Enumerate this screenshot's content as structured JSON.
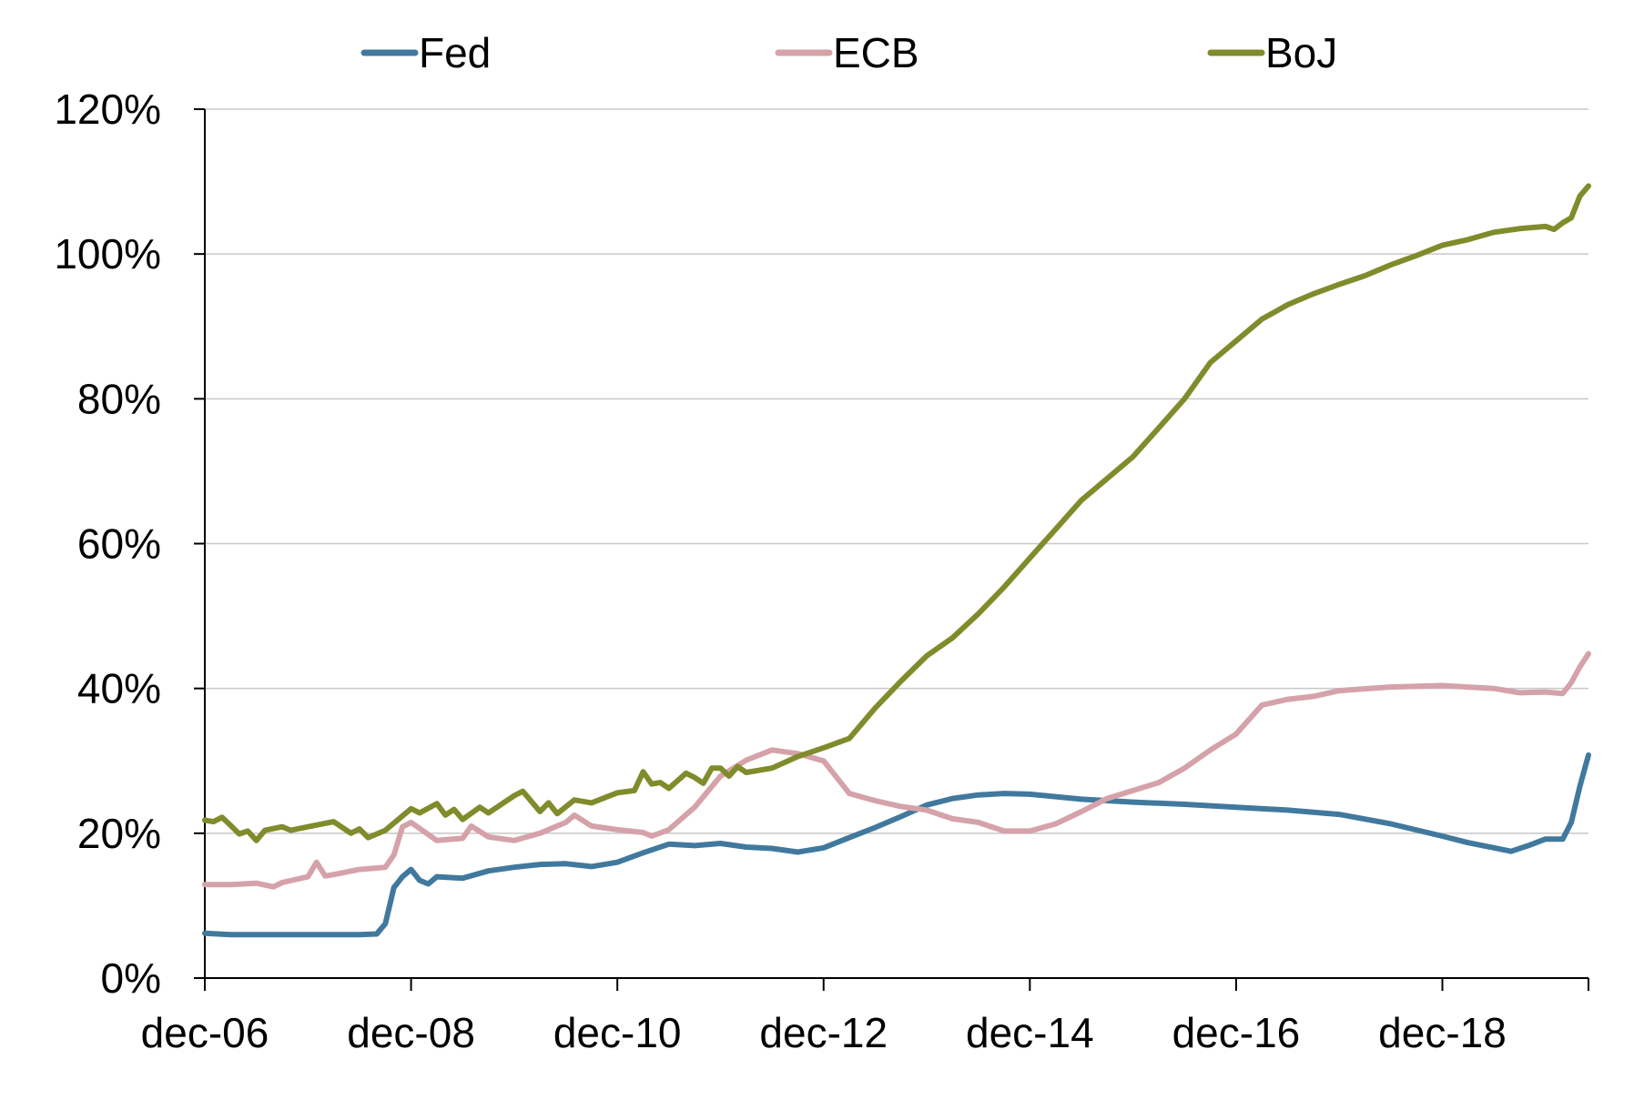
{
  "chart_data": {
    "type": "line",
    "title": "",
    "xlabel": "",
    "ylabel": "",
    "x_start": "2006-12",
    "x_end": "2020-05",
    "x_ticks": [
      "dec-06",
      "dec-08",
      "dec-10",
      "dec-12",
      "dec-14",
      "dec-16",
      "dec-18"
    ],
    "x_tick_dates": [
      "2006-12",
      "2008-12",
      "2010-12",
      "2012-12",
      "2014-12",
      "2016-12",
      "2018-12"
    ],
    "y_ticks": [
      "0%",
      "20%",
      "40%",
      "60%",
      "80%",
      "100%",
      "120%"
    ],
    "y_tick_values": [
      0,
      20,
      40,
      60,
      80,
      100,
      120
    ],
    "ylim": [
      0,
      120
    ],
    "grid": "horizontal",
    "legend_position": "top",
    "series": [
      {
        "name": "Fed",
        "color": "#41799E",
        "points": [
          [
            "2006-12",
            6.2
          ],
          [
            "2007-03",
            6.0
          ],
          [
            "2007-06",
            6.0
          ],
          [
            "2007-09",
            6.0
          ],
          [
            "2007-12",
            6.0
          ],
          [
            "2008-03",
            6.0
          ],
          [
            "2008-06",
            6.0
          ],
          [
            "2008-08",
            6.1
          ],
          [
            "2008-09",
            7.5
          ],
          [
            "2008-10",
            12.5
          ],
          [
            "2008-11",
            14.0
          ],
          [
            "2008-12",
            15.0
          ],
          [
            "2009-01",
            13.5
          ],
          [
            "2009-02",
            13.0
          ],
          [
            "2009-03",
            14.0
          ],
          [
            "2009-06",
            13.8
          ],
          [
            "2009-09",
            14.8
          ],
          [
            "2009-12",
            15.3
          ],
          [
            "2010-03",
            15.7
          ],
          [
            "2010-06",
            15.8
          ],
          [
            "2010-09",
            15.4
          ],
          [
            "2010-12",
            16.0
          ],
          [
            "2011-03",
            17.3
          ],
          [
            "2011-06",
            18.5
          ],
          [
            "2011-09",
            18.3
          ],
          [
            "2011-12",
            18.6
          ],
          [
            "2012-03",
            18.1
          ],
          [
            "2012-06",
            17.9
          ],
          [
            "2012-09",
            17.4
          ],
          [
            "2012-12",
            18.0
          ],
          [
            "2013-03",
            19.4
          ],
          [
            "2013-06",
            20.8
          ],
          [
            "2013-09",
            22.3
          ],
          [
            "2013-12",
            23.9
          ],
          [
            "2014-03",
            24.8
          ],
          [
            "2014-06",
            25.3
          ],
          [
            "2014-09",
            25.5
          ],
          [
            "2014-12",
            25.4
          ],
          [
            "2015-06",
            24.7
          ],
          [
            "2015-12",
            24.3
          ],
          [
            "2016-06",
            24.0
          ],
          [
            "2016-12",
            23.6
          ],
          [
            "2017-06",
            23.2
          ],
          [
            "2017-12",
            22.6
          ],
          [
            "2018-06",
            21.3
          ],
          [
            "2018-12",
            19.6
          ],
          [
            "2019-03",
            18.7
          ],
          [
            "2019-06",
            18.0
          ],
          [
            "2019-08",
            17.5
          ],
          [
            "2019-10",
            18.3
          ],
          [
            "2019-12",
            19.2
          ],
          [
            "2020-01",
            19.2
          ],
          [
            "2020-02",
            19.2
          ],
          [
            "2020-03",
            21.5
          ],
          [
            "2020-04",
            26.5
          ],
          [
            "2020-05",
            30.8
          ]
        ]
      },
      {
        "name": "ECB",
        "color": "#D5A2A9",
        "points": [
          [
            "2006-12",
            12.9
          ],
          [
            "2007-03",
            12.9
          ],
          [
            "2007-06",
            13.1
          ],
          [
            "2007-08",
            12.6
          ],
          [
            "2007-09",
            13.2
          ],
          [
            "2007-12",
            14.0
          ],
          [
            "2008-01",
            16.0
          ],
          [
            "2008-02",
            14.1
          ],
          [
            "2008-03",
            14.3
          ],
          [
            "2008-06",
            15.0
          ],
          [
            "2008-09",
            15.3
          ],
          [
            "2008-10",
            17.0
          ],
          [
            "2008-11",
            20.9
          ],
          [
            "2008-12",
            21.5
          ],
          [
            "2009-03",
            19.0
          ],
          [
            "2009-06",
            19.3
          ],
          [
            "2009-07",
            21.0
          ],
          [
            "2009-09",
            19.5
          ],
          [
            "2009-12",
            19.0
          ],
          [
            "2010-03",
            20.0
          ],
          [
            "2010-06",
            21.5
          ],
          [
            "2010-07",
            22.5
          ],
          [
            "2010-09",
            21.0
          ],
          [
            "2010-12",
            20.5
          ],
          [
            "2011-03",
            20.1
          ],
          [
            "2011-04",
            19.6
          ],
          [
            "2011-06",
            20.5
          ],
          [
            "2011-09",
            23.6
          ],
          [
            "2011-12",
            27.9
          ],
          [
            "2012-03",
            30.1
          ],
          [
            "2012-06",
            31.5
          ],
          [
            "2012-09",
            31.0
          ],
          [
            "2012-12",
            30.0
          ],
          [
            "2013-03",
            25.5
          ],
          [
            "2013-06",
            24.5
          ],
          [
            "2013-09",
            23.7
          ],
          [
            "2013-12",
            23.2
          ],
          [
            "2014-03",
            22.0
          ],
          [
            "2014-06",
            21.5
          ],
          [
            "2014-09",
            20.3
          ],
          [
            "2014-12",
            20.3
          ],
          [
            "2015-03",
            21.3
          ],
          [
            "2015-06",
            23.0
          ],
          [
            "2015-09",
            24.8
          ],
          [
            "2015-12",
            25.9
          ],
          [
            "2016-03",
            27.0
          ],
          [
            "2016-06",
            29.0
          ],
          [
            "2016-09",
            31.5
          ],
          [
            "2016-12",
            33.7
          ],
          [
            "2017-03",
            37.7
          ],
          [
            "2017-06",
            38.5
          ],
          [
            "2017-09",
            38.9
          ],
          [
            "2017-12",
            39.7
          ],
          [
            "2018-06",
            40.2
          ],
          [
            "2018-12",
            40.4
          ],
          [
            "2019-06",
            40.0
          ],
          [
            "2019-09",
            39.4
          ],
          [
            "2019-12",
            39.5
          ],
          [
            "2020-02",
            39.3
          ],
          [
            "2020-03",
            40.8
          ],
          [
            "2020-04",
            43.0
          ],
          [
            "2020-05",
            44.8
          ]
        ]
      },
      {
        "name": "BoJ",
        "color": "#808C2B",
        "points": [
          [
            "2006-12",
            21.8
          ],
          [
            "2007-01",
            21.6
          ],
          [
            "2007-02",
            22.2
          ],
          [
            "2007-03",
            21.1
          ],
          [
            "2007-04",
            19.9
          ],
          [
            "2007-05",
            20.3
          ],
          [
            "2007-06",
            19.0
          ],
          [
            "2007-07",
            20.4
          ],
          [
            "2007-09",
            20.9
          ],
          [
            "2007-10",
            20.4
          ],
          [
            "2007-12",
            20.9
          ],
          [
            "2008-03",
            21.6
          ],
          [
            "2008-05",
            20.0
          ],
          [
            "2008-06",
            20.6
          ],
          [
            "2008-07",
            19.4
          ],
          [
            "2008-09",
            20.4
          ],
          [
            "2008-12",
            23.4
          ],
          [
            "2009-01",
            22.8
          ],
          [
            "2009-03",
            24.1
          ],
          [
            "2009-04",
            22.5
          ],
          [
            "2009-05",
            23.3
          ],
          [
            "2009-06",
            21.9
          ],
          [
            "2009-08",
            23.6
          ],
          [
            "2009-09",
            22.8
          ],
          [
            "2009-12",
            25.2
          ],
          [
            "2010-01",
            25.8
          ],
          [
            "2010-03",
            23.0
          ],
          [
            "2010-04",
            24.2
          ],
          [
            "2010-05",
            22.7
          ],
          [
            "2010-07",
            24.6
          ],
          [
            "2010-09",
            24.2
          ],
          [
            "2010-12",
            25.6
          ],
          [
            "2011-02",
            25.9
          ],
          [
            "2011-03",
            28.5
          ],
          [
            "2011-04",
            26.8
          ],
          [
            "2011-05",
            27.0
          ],
          [
            "2011-06",
            26.2
          ],
          [
            "2011-08",
            28.3
          ],
          [
            "2011-09",
            27.7
          ],
          [
            "2011-10",
            26.9
          ],
          [
            "2011-11",
            29.0
          ],
          [
            "2011-12",
            29.0
          ],
          [
            "2012-01",
            27.9
          ],
          [
            "2012-02",
            29.2
          ],
          [
            "2012-03",
            28.4
          ],
          [
            "2012-06",
            29.0
          ],
          [
            "2012-09",
            30.6
          ],
          [
            "2012-12",
            31.8
          ],
          [
            "2013-03",
            33.1
          ],
          [
            "2013-06",
            37.3
          ],
          [
            "2013-09",
            41.0
          ],
          [
            "2013-12",
            44.5
          ],
          [
            "2014-03",
            47.0
          ],
          [
            "2014-06",
            50.3
          ],
          [
            "2014-09",
            54.0
          ],
          [
            "2014-12",
            58.0
          ],
          [
            "2015-03",
            62.0
          ],
          [
            "2015-06",
            66.0
          ],
          [
            "2015-09",
            69.0
          ],
          [
            "2015-12",
            72.0
          ],
          [
            "2016-03",
            76.0
          ],
          [
            "2016-06",
            80.0
          ],
          [
            "2016-09",
            85.0
          ],
          [
            "2016-12",
            88.0
          ],
          [
            "2017-03",
            91.0
          ],
          [
            "2017-06",
            93.0
          ],
          [
            "2017-09",
            94.5
          ],
          [
            "2017-12",
            95.8
          ],
          [
            "2018-03",
            97.0
          ],
          [
            "2018-06",
            98.5
          ],
          [
            "2018-09",
            99.8
          ],
          [
            "2018-12",
            101.2
          ],
          [
            "2019-03",
            102.0
          ],
          [
            "2019-06",
            103.0
          ],
          [
            "2019-09",
            103.5
          ],
          [
            "2019-12",
            103.8
          ],
          [
            "2020-01",
            103.4
          ],
          [
            "2020-02",
            104.3
          ],
          [
            "2020-03",
            105.0
          ],
          [
            "2020-04",
            108.0
          ],
          [
            "2020-05",
            109.4
          ]
        ]
      }
    ]
  }
}
